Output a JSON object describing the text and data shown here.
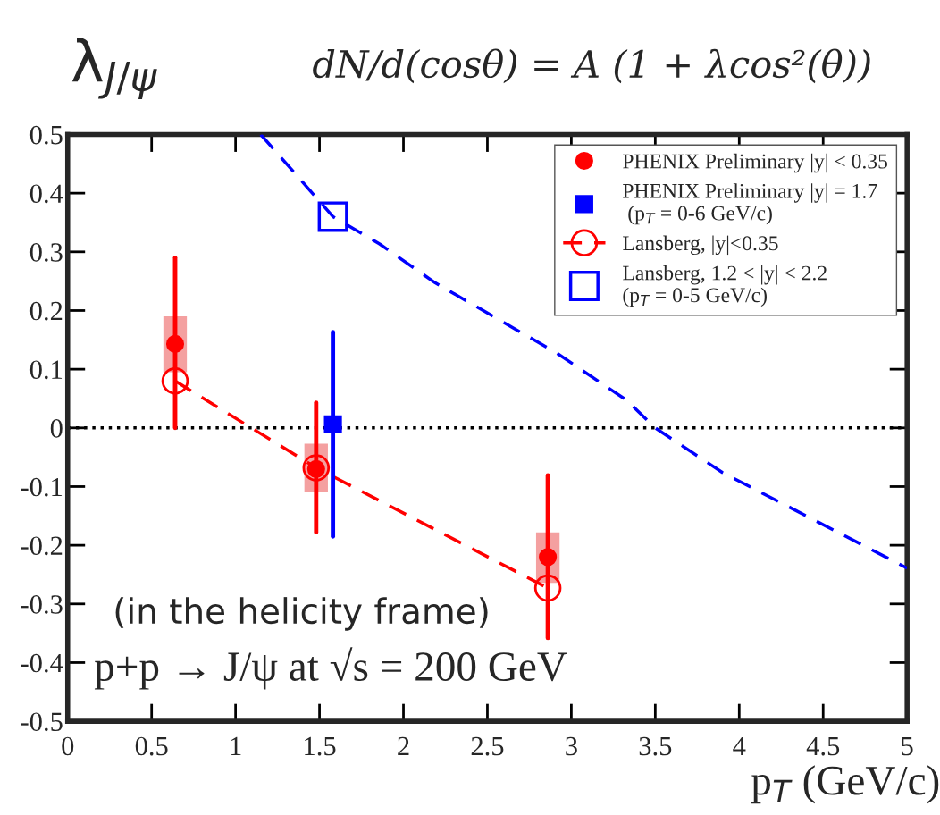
{
  "chart_data": {
    "type": "scatter",
    "title": "λ$_{J/ψ}$",
    "xlabel": "p$_{T}$ (GeV/c)",
    "xlim": [
      0,
      5
    ],
    "xticks": [
      0,
      0.5,
      1,
      1.5,
      2,
      2.5,
      3,
      3.5,
      4,
      4.5,
      5
    ],
    "ylim": [
      -0.5,
      0.5
    ],
    "yticks": [
      -0.5,
      -0.4,
      -0.3,
      -0.2,
      -0.1,
      0,
      0.1,
      0.2,
      0.3,
      0.4,
      0.5
    ],
    "grid": false,
    "legend": "top right",
    "ref_lines": [
      {
        "axis": "y",
        "value": 0,
        "color": "#000000",
        "line_style": "dotted"
      }
    ],
    "annotations": [
      "dN/d(cosθ) = A (1 + λcos²(θ))",
      "(in the helicity frame)",
      "p+p → J/ψ at √s = 200 GeV"
    ],
    "series": [
      {
        "type": "bar",
        "color": "#f4a0a0",
        "x": [
          0.64,
          1.48,
          2.86
        ],
        "base": [
          0.095,
          -0.109,
          -0.264
        ],
        "values": [
          0.095,
          0.082,
          0.086
        ]
      },
      {
        "type": "line",
        "color": "#0000ff",
        "line_style": "dashed",
        "marker": "none",
        "x": [
          1.15,
          1.58,
          1.86,
          2.19,
          2.91,
          3.33,
          3.5,
          3.9,
          5.0
        ],
        "values": [
          0.5,
          0.36,
          0.313,
          0.247,
          0.128,
          0.047,
          0.0,
          -0.076,
          -0.239
        ]
      },
      {
        "name": "PHENIX Preliminary |y| < 0.35",
        "marker": "circle",
        "color": "#ff0000",
        "x": [
          0.64,
          1.48,
          2.86
        ],
        "values": [
          0.143,
          -0.07,
          -0.22
        ],
        "errors": [
          [
            0,
            0.29
          ],
          [
            -0.178,
            0.043
          ],
          [
            -0.358,
            -0.081
          ]
        ]
      },
      {
        "name": "PHENIX Preliminary |y| = 1.7\n (p$_{T}$ = 0-6 GeV/c)",
        "marker": "square",
        "color": "#0000ff",
        "x": [
          1.58
        ],
        "values": [
          0.006
        ],
        "errors": [
          [
            -0.185,
            0.163
          ]
        ]
      },
      {
        "name": "Lansberg, |y|<0.35",
        "type": "line",
        "marker": "circle",
        "line_style": "dashed",
        "color": "#ff0000",
        "x": [
          0.64,
          1.48,
          2.86
        ],
        "values": [
          0.08,
          -0.068,
          -0.273
        ]
      },
      {
        "name": "Lansberg, 1.2 < |y| < 2.2\n(p$_{T}$ = 0-5 GeV/c)",
        "marker": "square",
        "color": "#0000ff",
        "x": [
          1.58
        ],
        "values": [
          0.36
        ]
      }
    ]
  }
}
